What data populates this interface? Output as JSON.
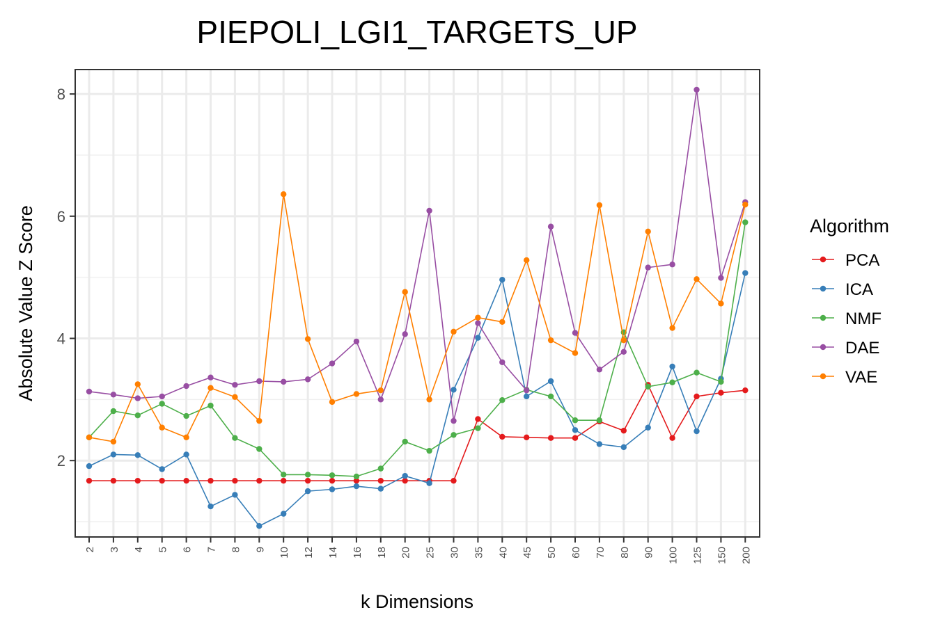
{
  "chart_data": {
    "type": "line",
    "title": "PIEPOLI_LGI1_TARGETS_UP",
    "xlabel": "k Dimensions",
    "ylabel": "Absolute Value Z Score",
    "categories": [
      "2",
      "3",
      "4",
      "5",
      "6",
      "7",
      "8",
      "9",
      "10",
      "12",
      "14",
      "16",
      "18",
      "20",
      "25",
      "30",
      "35",
      "40",
      "45",
      "50",
      "60",
      "70",
      "80",
      "90",
      "100",
      "125",
      "150",
      "200"
    ],
    "ylim": [
      0.75,
      8.4
    ],
    "yticks": [
      2,
      4,
      6,
      8
    ],
    "grid": true,
    "legend": {
      "title": "Algorithm",
      "position": "right"
    },
    "series": [
      {
        "name": "PCA",
        "color": "#e41a1c",
        "values": [
          1.67,
          1.67,
          1.67,
          1.67,
          1.67,
          1.67,
          1.67,
          1.67,
          1.67,
          1.67,
          1.67,
          1.67,
          1.67,
          1.67,
          1.67,
          1.67,
          2.68,
          2.39,
          2.38,
          2.37,
          2.37,
          2.64,
          2.49,
          3.24,
          2.37,
          3.05,
          3.11,
          3.15
        ]
      },
      {
        "name": "ICA",
        "color": "#377eb8",
        "values": [
          1.91,
          2.1,
          2.09,
          1.86,
          2.1,
          1.25,
          1.44,
          0.93,
          1.13,
          1.5,
          1.53,
          1.58,
          1.54,
          1.75,
          1.63,
          3.16,
          4.01,
          4.96,
          3.05,
          3.3,
          2.5,
          2.27,
          2.22,
          2.54,
          3.54,
          2.48,
          3.34,
          5.07
        ]
      },
      {
        "name": "NMF",
        "color": "#4daf4a",
        "values": [
          2.38,
          2.81,
          2.74,
          2.93,
          2.73,
          2.9,
          2.37,
          2.19,
          1.77,
          1.77,
          1.76,
          1.74,
          1.87,
          2.31,
          2.16,
          2.42,
          2.53,
          2.99,
          3.16,
          3.05,
          2.66,
          2.66,
          4.1,
          3.21,
          3.28,
          3.44,
          3.29,
          5.9
        ]
      },
      {
        "name": "DAE",
        "color": "#984ea3",
        "values": [
          3.13,
          3.08,
          3.02,
          3.05,
          3.22,
          3.36,
          3.24,
          3.3,
          3.29,
          3.33,
          3.59,
          3.95,
          3.0,
          4.07,
          6.09,
          2.65,
          4.25,
          3.61,
          3.15,
          5.83,
          4.09,
          3.49,
          3.78,
          5.16,
          5.21,
          8.07,
          4.99,
          6.23
        ]
      },
      {
        "name": "VAE",
        "color": "#ff7f00",
        "values": [
          2.38,
          2.31,
          3.25,
          2.54,
          2.38,
          3.19,
          3.04,
          2.65,
          6.36,
          3.99,
          2.96,
          3.09,
          3.15,
          4.76,
          3.0,
          4.11,
          4.34,
          4.27,
          5.28,
          3.97,
          3.76,
          6.18,
          3.97,
          5.75,
          4.17,
          4.97,
          4.57,
          6.19
        ]
      }
    ]
  }
}
